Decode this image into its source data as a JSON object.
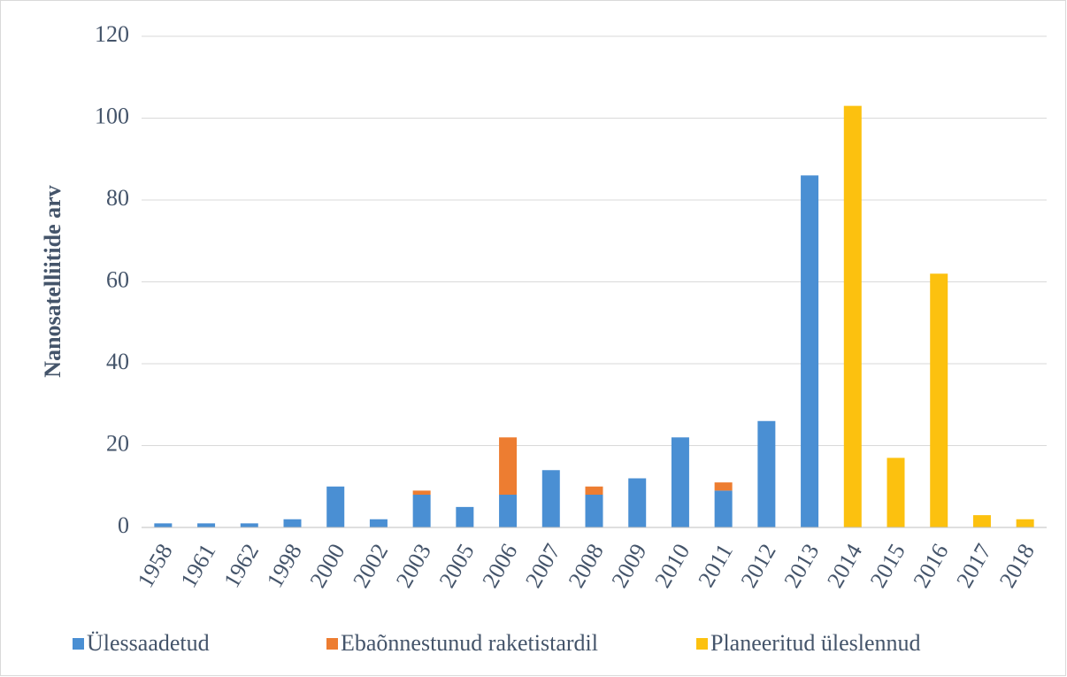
{
  "chart_data": {
    "type": "bar",
    "stacked": true,
    "y_axis_label": "Nanosatelliitide arv",
    "categories": [
      "1958",
      "1961",
      "1962",
      "1998",
      "2000",
      "2002",
      "2003",
      "2005",
      "2006",
      "2007",
      "2008",
      "2009",
      "2010",
      "2011",
      "2012",
      "2013",
      "2014",
      "2015",
      "2016",
      "2017",
      "2018"
    ],
    "series": [
      {
        "name": "Ülessaadetud",
        "color": "#4a8fd3",
        "values": [
          1,
          1,
          1,
          2,
          10,
          2,
          8,
          5,
          8,
          14,
          8,
          12,
          22,
          9,
          26,
          86,
          0,
          0,
          0,
          0,
          0
        ]
      },
      {
        "name": "Ebaõnnestunud raketistardil",
        "color": "#ed7d31",
        "values": [
          0,
          0,
          0,
          0,
          0,
          0,
          1,
          0,
          14,
          0,
          2,
          0,
          0,
          2,
          0,
          0,
          0,
          0,
          0,
          0,
          0
        ]
      },
      {
        "name": "Planeeritud üleslennud",
        "color": "#fcc10f",
        "values": [
          0,
          0,
          0,
          0,
          0,
          0,
          0,
          0,
          0,
          0,
          0,
          0,
          0,
          0,
          0,
          0,
          103,
          17,
          62,
          3,
          2
        ]
      }
    ],
    "ylim": [
      0,
      120
    ],
    "yticks": [
      0,
      20,
      40,
      60,
      80,
      100,
      120
    ],
    "grid": true,
    "legend": "bottom"
  }
}
